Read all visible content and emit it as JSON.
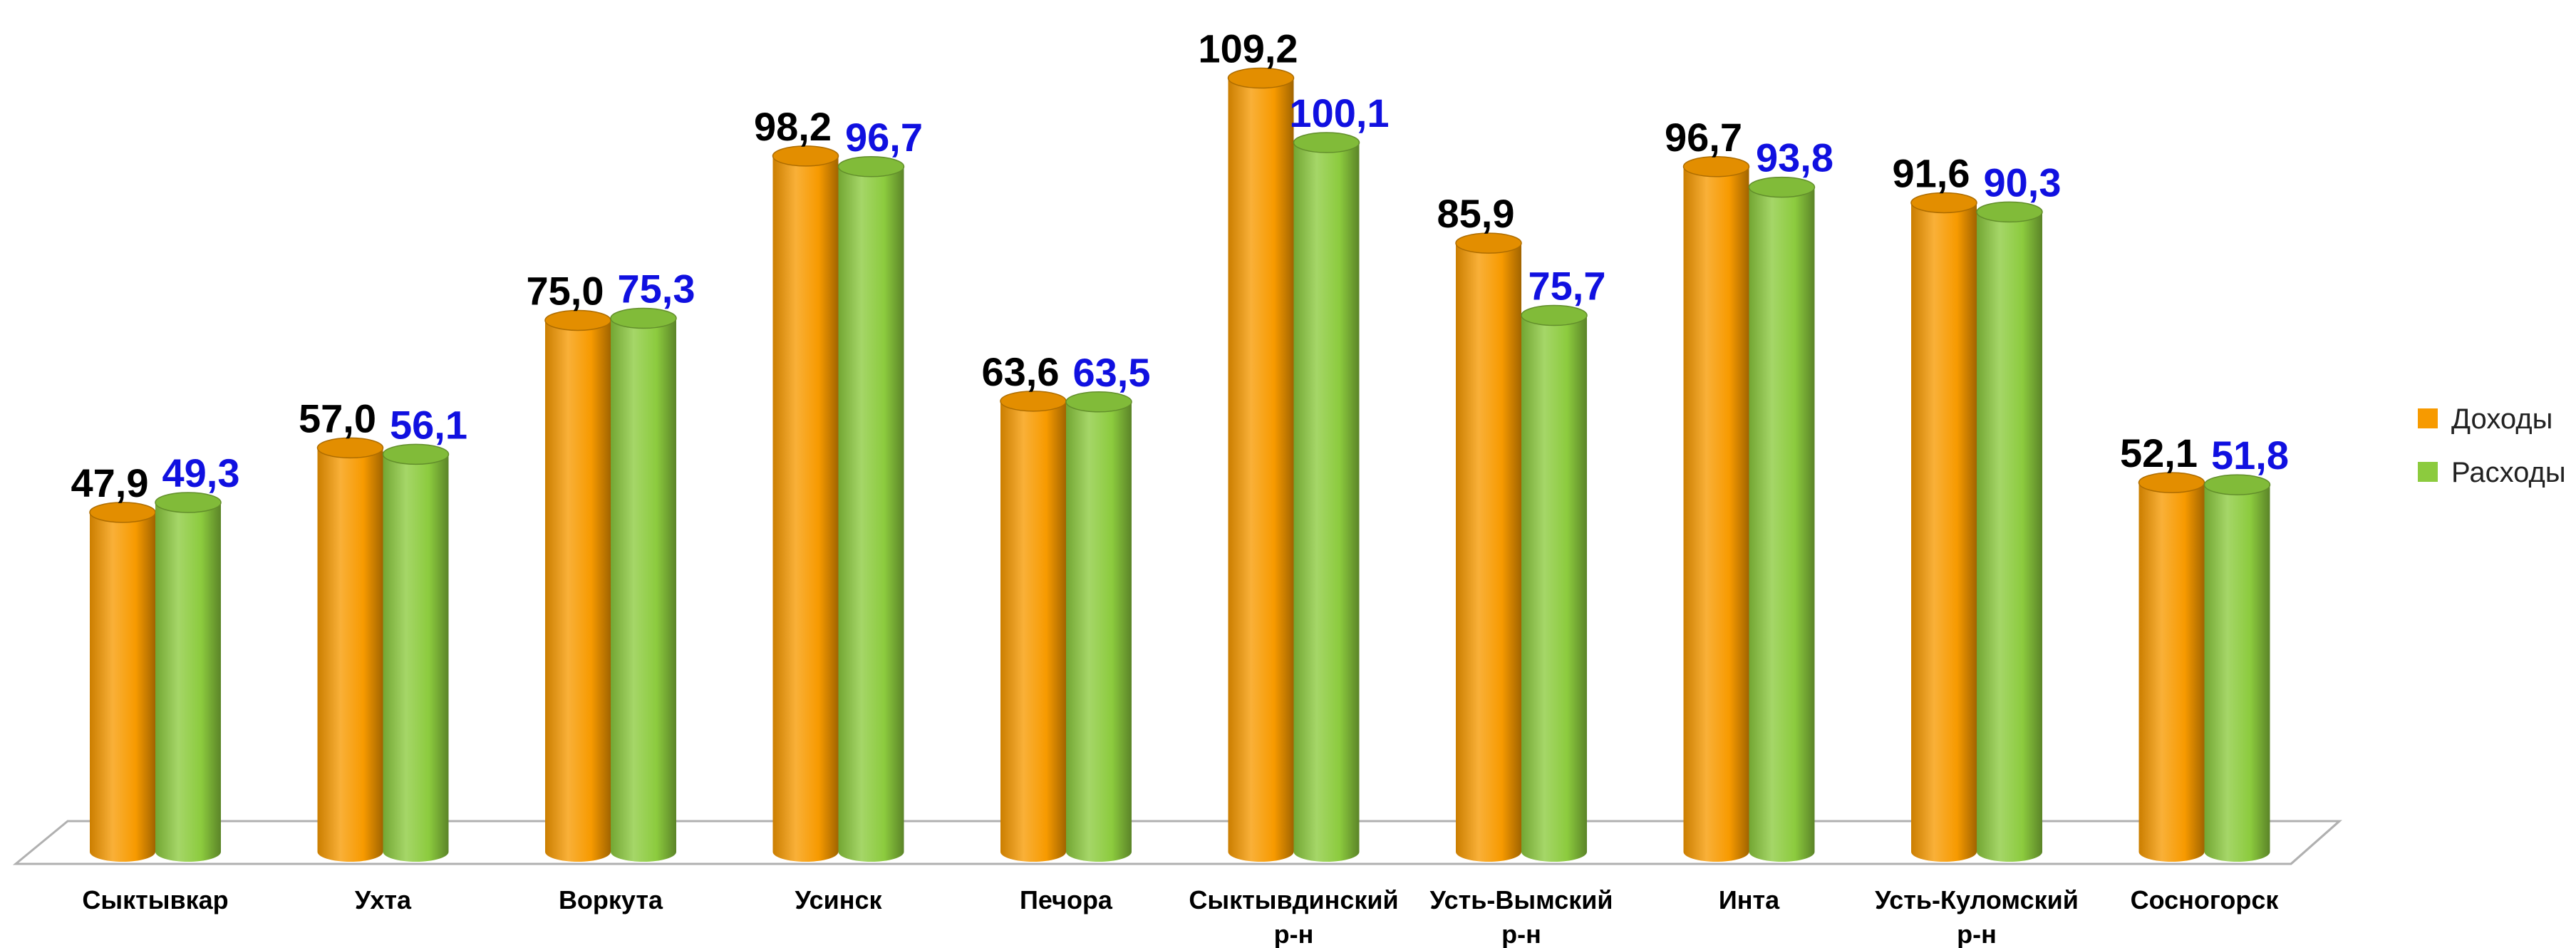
{
  "chart_data": {
    "type": "bar",
    "title": "",
    "xlabel": "",
    "ylabel": "",
    "ylim": [
      0,
      112
    ],
    "grid": false,
    "legend_position": "right",
    "categories": [
      [
        "Сыктывкар"
      ],
      [
        "Ухта"
      ],
      [
        "Воркута"
      ],
      [
        "Усинск"
      ],
      [
        "Печора"
      ],
      [
        "Сыктывдинский",
        "р-н"
      ],
      [
        "Усть-Вымский",
        "р-н"
      ],
      [
        "Инта"
      ],
      [
        "Усть-Куломский",
        "р-н"
      ],
      [
        "Сосногорск"
      ]
    ],
    "series": [
      {
        "name": "Доходы",
        "color": "#F79A00",
        "label_color": "#000000",
        "values": [
          47.9,
          57.0,
          75.0,
          98.2,
          63.6,
          109.2,
          85.9,
          96.7,
          91.6,
          52.1
        ],
        "labels": [
          "47,9",
          "57,0",
          "75,0",
          "98,2",
          "63,6",
          "109,2",
          "85,9",
          "96,7",
          "91,6",
          "52,1"
        ]
      },
      {
        "name": "Расходы",
        "color": "#8CCB3E",
        "label_color": "#1010E0",
        "values": [
          49.3,
          56.1,
          75.3,
          96.7,
          63.5,
          100.1,
          75.7,
          93.8,
          90.3,
          51.8
        ],
        "labels": [
          "49,3",
          "56,1",
          "75,3",
          "96,7",
          "63,5",
          "100,1",
          "75,7",
          "93,8",
          "90,3",
          "51,8"
        ]
      }
    ]
  }
}
